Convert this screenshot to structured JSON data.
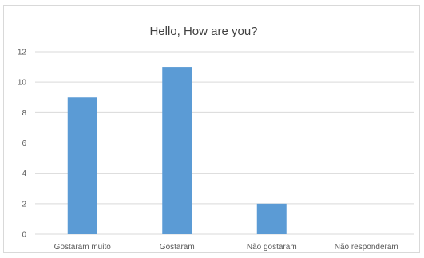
{
  "chart_data": {
    "type": "bar",
    "title": "Hello, How are you?",
    "categories": [
      "Gostaram muito",
      "Gostaram",
      "Não gostaram",
      "Não responderam"
    ],
    "values": [
      9,
      11,
      2,
      0
    ],
    "xlabel": "",
    "ylabel": "",
    "ylim": [
      0,
      12
    ],
    "yticks": [
      0,
      2,
      4,
      6,
      8,
      10,
      12
    ],
    "grid": true,
    "legend": "none",
    "bar_color": "#5b9bd5",
    "gridline_color": "#d9d9d9",
    "text_color": "#595959"
  }
}
